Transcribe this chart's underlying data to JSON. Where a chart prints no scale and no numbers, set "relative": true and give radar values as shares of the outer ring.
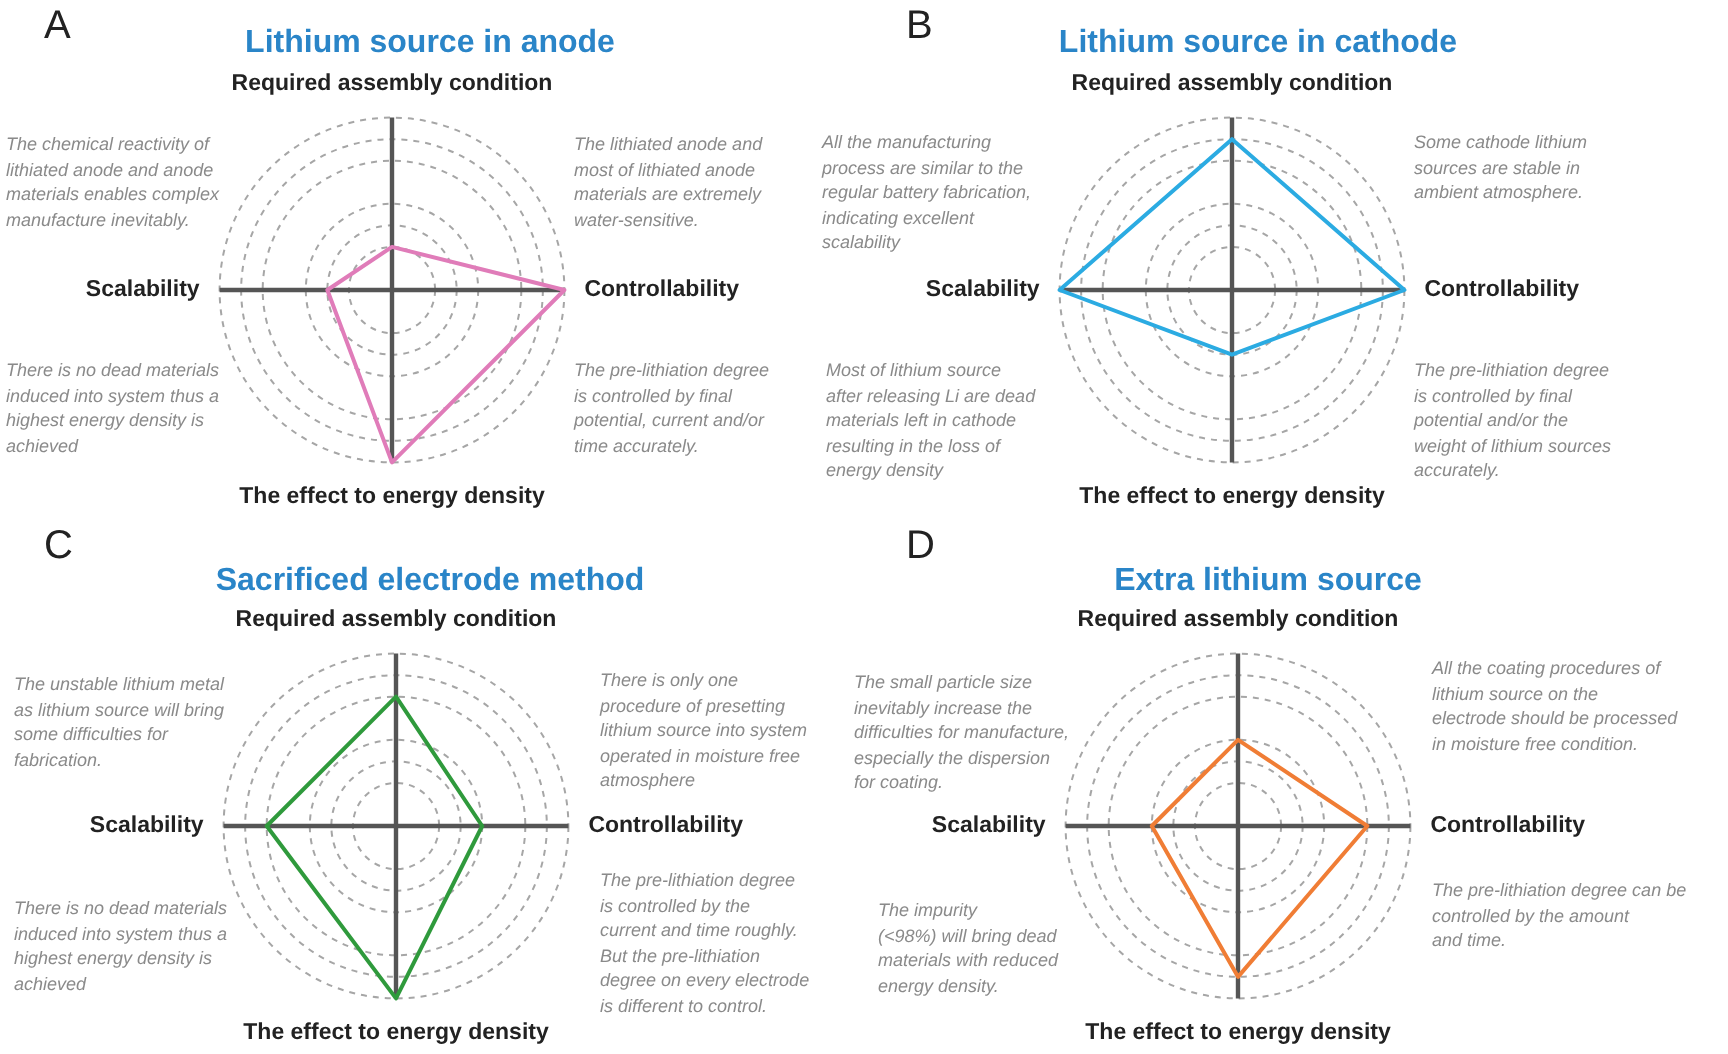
{
  "chart_data": [
    {
      "type": "radar",
      "title": "Lithium source in anode",
      "categories": [
        "Required assembly condition",
        "Controllability",
        "The effect to energy density",
        "Scalability"
      ],
      "series": [
        {
          "color": "#e07cb9",
          "values": [
            0.25,
            1,
            1,
            0.375
          ]
        }
      ],
      "relative": true,
      "grid": true,
      "annotations": [
        "A",
        "The chemical reactivity of\nlithiated anode and anode\nmaterials enables complex\nmanufacture inevitably.",
        "The lithiated anode and\nmost of lithiated anode\nmaterials are extremely\nwater-sensitive.",
        "There is no dead materials\ninduced into system thus a\nhighest energy density is\nachieved",
        "The pre-lithiation degree\nis controlled by final\npotential, current and/or\ntime accurately."
      ]
    },
    {
      "type": "radar",
      "title": "Lithium source in cathode",
      "categories": [
        "Required assembly condition",
        "Controllability",
        "The effect to energy density",
        "Scalability"
      ],
      "series": [
        {
          "color": "#2babe2",
          "values": [
            0.875,
            1,
            0.375,
            1
          ]
        }
      ],
      "relative": true,
      "grid": true,
      "annotations": [
        "B",
        "All the manufacturing\nprocess are similar to the\nregular battery fabrication,\nindicating excellent\nscalability",
        "Some cathode lithium\nsources are stable in\nambient atmosphere.",
        "Most of lithium source\nafter releasing Li are dead\nmaterials left in cathode\nresulting in the loss of\nenergy density",
        "The pre-lithiation degree\nis controlled by final\npotential and/or the\nweight of lithium sources\naccurately."
      ]
    },
    {
      "type": "radar",
      "title": "Sacrificed electrode method",
      "categories": [
        "Required assembly condition",
        "Controllability",
        "The effect to energy density",
        "Scalability"
      ],
      "series": [
        {
          "color": "#2f9a3c",
          "values": [
            0.75,
            0.5,
            1,
            0.75
          ]
        }
      ],
      "relative": true,
      "grid": true,
      "annotations": [
        "C",
        "The unstable lithium metal\nas lithium source will bring\nsome difficulties for\nfabrication.",
        "There is only one\nprocedure of presetting\nlithium source into system\noperated in moisture free\natmosphere",
        "There is no dead materials\ninduced into system thus a\nhighest energy density is\nachieved",
        "The pre-lithiation degree\nis controlled by the\ncurrent and time roughly.\nBut the pre-lithiation\ndegree on every electrode\nis different to control."
      ]
    },
    {
      "type": "radar",
      "title": "Extra lithium source",
      "categories": [
        "Required assembly condition",
        "Controllability",
        "The effect to energy density",
        "Scalability"
      ],
      "series": [
        {
          "color": "#f07d35",
          "values": [
            0.5,
            0.75,
            0.875,
            0.5
          ]
        }
      ],
      "relative": true,
      "grid": true,
      "annotations": [
        "D",
        "The small particle size\ninevitably increase the\ndifficulties for manufacture,\nespecially the dispersion\nfor coating.",
        "All the coating procedures of\nlithium source on the\nelectrode should be processed\nin moisture free condition.",
        "The impurity\n(<98%) will bring dead\nmaterials with reduced\nenergy density.",
        "The pre-lithiation degree can be\ncontrolled by the amount\nand time."
      ]
    }
  ]
}
